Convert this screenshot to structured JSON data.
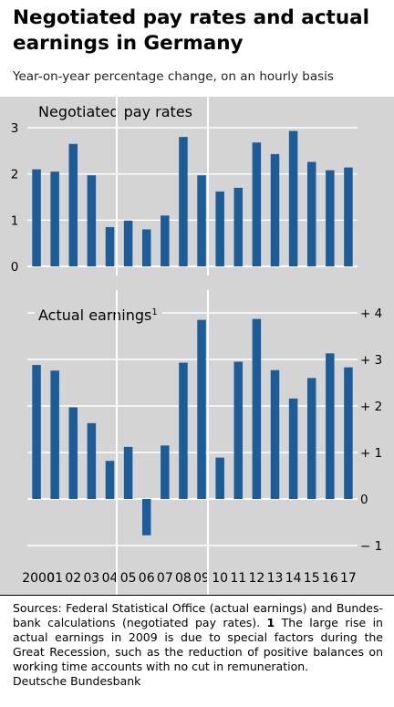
{
  "title": "Negotiated pay rates and actual earnings in Germany",
  "subtitle": "Year-on-year percentage change, on an hourly basis",
  "chart_data": [
    {
      "type": "bar",
      "title": "Negotiated pay rates",
      "categories": [
        "2000",
        "01",
        "02",
        "03",
        "04",
        "05",
        "06",
        "07",
        "08",
        "09",
        "10",
        "11",
        "12",
        "13",
        "14",
        "15",
        "16",
        "17"
      ],
      "values": [
        2.1,
        2.05,
        2.65,
        1.97,
        0.85,
        0.99,
        0.8,
        1.1,
        2.8,
        1.97,
        1.62,
        1.7,
        2.68,
        2.43,
        2.93,
        2.26,
        2.08,
        2.14
      ],
      "ylim": [
        0,
        3
      ],
      "yticks": [
        "0",
        "1",
        "2",
        "3"
      ],
      "axis_side": "left",
      "bar_color": "#1c5c98",
      "background": "#d4d4d4",
      "grid": true
    },
    {
      "type": "bar",
      "title": "Actual earnings",
      "title_note": "1",
      "categories": [
        "2000",
        "01",
        "02",
        "03",
        "04",
        "05",
        "06",
        "07",
        "08",
        "09",
        "10",
        "11",
        "12",
        "13",
        "14",
        "15",
        "16",
        "17"
      ],
      "values": [
        2.88,
        2.76,
        1.97,
        1.63,
        0.82,
        1.12,
        -0.78,
        1.15,
        2.93,
        3.85,
        0.89,
        2.95,
        3.87,
        2.77,
        2.16,
        2.6,
        3.13,
        2.83
      ],
      "ylim": [
        -1,
        4
      ],
      "yticks": [
        "− 1",
        "0",
        "+ 1",
        "+ 2",
        "+ 3",
        "+ 4"
      ],
      "axis_side": "right",
      "bar_color": "#1c5c98",
      "background": "#d4d4d4",
      "grid": true
    }
  ],
  "footer": {
    "sources_text": "Sources: Federal Statistical Office (actual earnings) and Bundes-bank calculations (negotiated pay rates).",
    "footnote_marker": "1",
    "footnote_text": "The large rise in actual earnings in 2009 is due to special factors during the Great Recession, such as the reduction of positive balances on working time accounts with no cut in remuneration.",
    "publisher": "Deutsche Bundesbank"
  }
}
